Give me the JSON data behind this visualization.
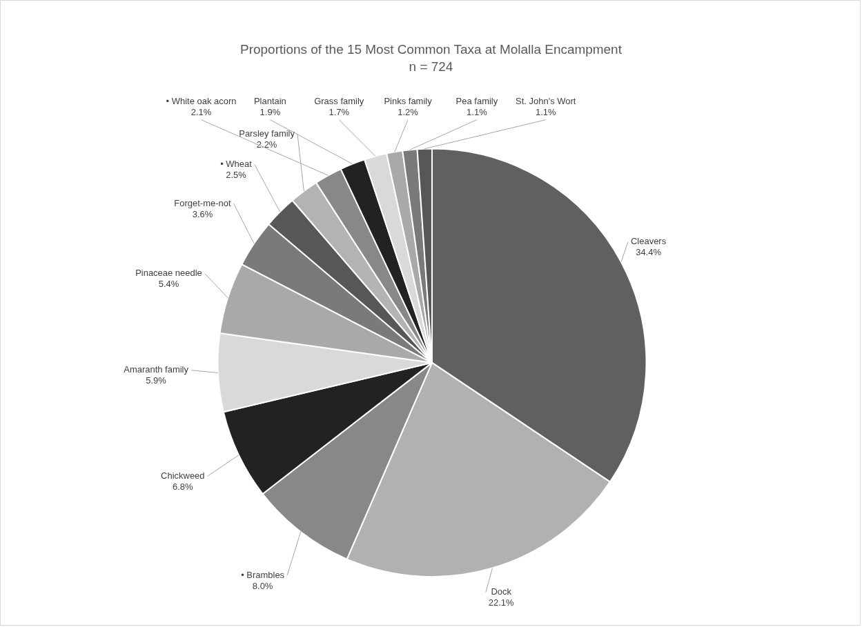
{
  "chart_data": {
    "type": "pie",
    "title": "Proportions of the 15 Most Common Taxa at Molalla Encampment",
    "subtitle": "n = 724",
    "categories": [
      "Cleavers",
      "Dock",
      "• Brambles",
      "Chickweed",
      "Amaranth family",
      "Pinaceae needle",
      "Forget-me-not",
      "• Wheat",
      "Parsley family",
      "• White oak acorn",
      "Plantain",
      "Grass family",
      "Pinks family",
      "Pea family",
      "St. John's Wort"
    ],
    "values": [
      34.4,
      22.1,
      8.0,
      6.8,
      5.9,
      5.4,
      3.6,
      2.5,
      2.2,
      2.1,
      1.9,
      1.7,
      1.2,
      1.1,
      1.1
    ],
    "value_labels": [
      "34.4%",
      "22.1%",
      "8.0%",
      "6.8%",
      "5.9%",
      "5.4%",
      "3.6%",
      "2.5%",
      "2.2%",
      "2.1%",
      "1.9%",
      "1.7%",
      "1.2%",
      "1.1%",
      "1.1%"
    ],
    "colors": [
      "#606060",
      "#b1b1b1",
      "#888888",
      "#222222",
      "#d9d9d9",
      "#a9a9a9",
      "#7a7a7a",
      "#575757",
      "#b3b3b3",
      "#888888",
      "#222222",
      "#d9d9d9",
      "#a9a9a9",
      "#7a7a7a",
      "#575757"
    ],
    "legend": false
  }
}
